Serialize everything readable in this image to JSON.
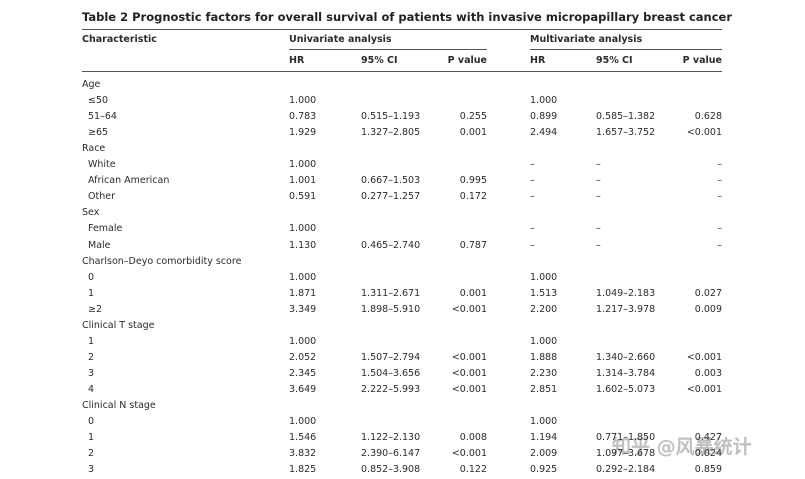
{
  "title": "Table 2  Prognostic factors for overall survival of patients with invasive micropapillary breast cancer",
  "table": {
    "header": [
      "Characteristic",
      "Univariate analysis",
      "Multivariate analysis"
    ],
    "subheader": [
      "HR",
      "95% CI",
      "P value",
      "HR",
      "95% CI",
      "P value"
    ],
    "rows": [
      {
        "label": "Age"
      },
      {
        "label": "≤50",
        "cells": [
          "1.000",
          null,
          null,
          "1.000",
          null,
          null
        ]
      },
      {
        "label": "51–64",
        "cells": [
          "0.783",
          "0.515–1.193",
          "0.255",
          "0.899",
          "0.585–1.382",
          "0.628"
        ]
      },
      {
        "label": "≥65",
        "cells": [
          "1.929",
          "1.327–2.805",
          "0.001",
          "2.494",
          "1.657–3.752",
          "<0.001"
        ]
      },
      {
        "label": "Race"
      },
      {
        "label": "White",
        "cells": [
          "1.000",
          null,
          null,
          "–",
          "–",
          "–"
        ]
      },
      {
        "label": "African American",
        "cells": [
          "1.001",
          "0.667–1.503",
          "0.995",
          "–",
          "–",
          "–"
        ]
      },
      {
        "label": "Other",
        "cells": [
          "0.591",
          "0.277–1.257",
          "0.172",
          "–",
          "–",
          "–"
        ]
      },
      {
        "label": "Sex"
      },
      {
        "label": "Female",
        "cells": [
          "1.000",
          null,
          null,
          "–",
          "–",
          "–"
        ]
      },
      {
        "label": "Male",
        "cells": [
          "1.130",
          "0.465–2.740",
          "0.787",
          "–",
          "–",
          "–"
        ]
      },
      {
        "label": "Charlson–Deyo comorbidity score"
      },
      {
        "label": "0",
        "cells": [
          "1.000",
          null,
          null,
          "1.000",
          null,
          null
        ]
      },
      {
        "label": "1",
        "cells": [
          "1.871",
          "1.311–2.671",
          "0.001",
          "1.513",
          "1.049–2.183",
          "0.027"
        ]
      },
      {
        "label": "≥2",
        "cells": [
          "3.349",
          "1.898–5.910",
          "<0.001",
          "2.200",
          "1.217–3.978",
          "0.009"
        ]
      },
      {
        "label": "Clinical T stage"
      },
      {
        "label": "1",
        "cells": [
          "1.000",
          null,
          null,
          "1.000",
          null,
          null
        ]
      },
      {
        "label": "2",
        "cells": [
          "2.052",
          "1.507–2.794",
          "<0.001",
          "1.888",
          "1.340–2.660",
          "<0.001"
        ]
      },
      {
        "label": "3",
        "cells": [
          "2.345",
          "1.504–3.656",
          "<0.001",
          "2.230",
          "1.314–3.784",
          "0.003"
        ]
      },
      {
        "label": "4",
        "cells": [
          "3.649",
          "2.222–5.993",
          "<0.001",
          "2.851",
          "1.602–5.073",
          "<0.001"
        ]
      },
      {
        "label": "Clinical N stage"
      },
      {
        "label": "0",
        "cells": [
          "1.000",
          null,
          null,
          "1.000",
          null,
          null
        ]
      },
      {
        "label": "1",
        "cells": [
          "1.546",
          "1.122–2.130",
          "0.008",
          "1.194",
          "0.771–1.850",
          "0.427"
        ]
      },
      {
        "label": "2",
        "cells": [
          "3.832",
          "2.390–6.147",
          "<0.001",
          "2.009",
          "1.097–3.678",
          "0.024"
        ]
      },
      {
        "label": "3",
        "cells": [
          "1.825",
          "0.852–3.908",
          "0.122",
          "0.925",
          "0.292–2.184",
          "0.859"
        ]
      }
    ]
  },
  "watermark": "知乎 @风暴统计"
}
